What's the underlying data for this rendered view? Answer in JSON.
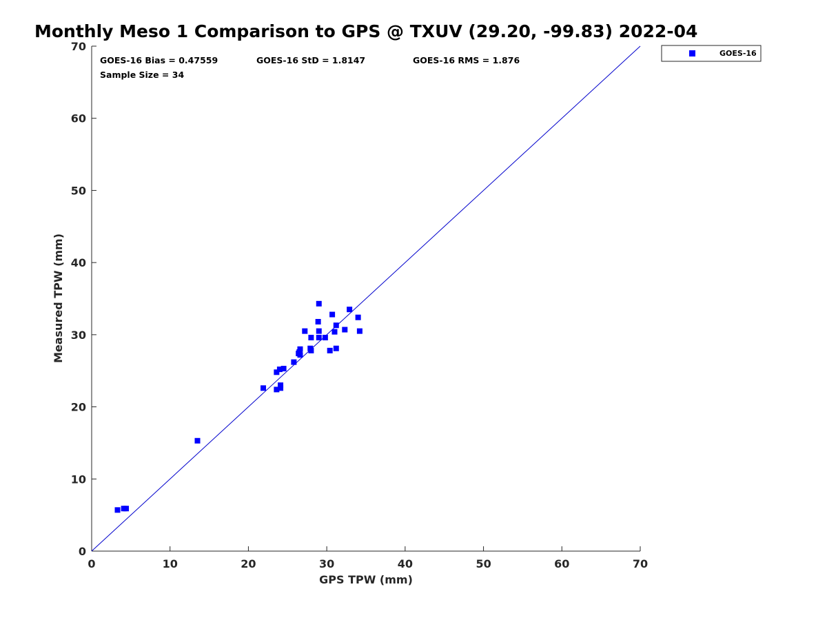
{
  "chart_data": {
    "type": "scatter",
    "title": "Monthly Meso 1 Comparison to GPS @ TXUV (29.20, -99.83) 2022-04",
    "xlabel": "GPS TPW (mm)",
    "ylabel": "Measured TPW (mm)",
    "xlim": [
      0,
      70
    ],
    "ylim": [
      0,
      70
    ],
    "xticks": [
      0,
      10,
      20,
      30,
      40,
      50,
      60,
      70
    ],
    "yticks": [
      0,
      10,
      20,
      30,
      40,
      50,
      60,
      70
    ],
    "grid": false,
    "legend_position": "outside-top-right",
    "reference_line": "y = x",
    "colors": {
      "series": "#0000ff",
      "reference_line": "#0000cc",
      "axis": "#262626"
    },
    "stats": {
      "bias": "GOES-16 Bias = 0.47559",
      "std": "GOES-16 StD = 1.8147",
      "rms": "GOES-16 RMS = 1.876",
      "sample_size": "Sample Size = 34"
    },
    "series": [
      {
        "name": "GOES-16",
        "marker": "square",
        "points": [
          [
            3.3,
            5.7
          ],
          [
            4.1,
            5.9
          ],
          [
            4.4,
            5.9
          ],
          [
            13.5,
            15.3
          ],
          [
            21.9,
            22.6
          ],
          [
            23.6,
            22.4
          ],
          [
            24.1,
            22.6
          ],
          [
            24.1,
            23.0
          ],
          [
            23.6,
            24.8
          ],
          [
            24.0,
            25.2
          ],
          [
            24.5,
            25.3
          ],
          [
            25.8,
            26.2
          ],
          [
            26.4,
            27.4
          ],
          [
            26.6,
            27.2
          ],
          [
            26.6,
            28.0
          ],
          [
            27.2,
            30.5
          ],
          [
            27.9,
            28.1
          ],
          [
            28.0,
            27.8
          ],
          [
            28.0,
            29.6
          ],
          [
            28.9,
            31.8
          ],
          [
            29.0,
            30.5
          ],
          [
            29.0,
            29.6
          ],
          [
            29.0,
            34.3
          ],
          [
            29.8,
            29.6
          ],
          [
            30.4,
            27.8
          ],
          [
            30.7,
            32.8
          ],
          [
            31.0,
            30.4
          ],
          [
            31.2,
            31.3
          ],
          [
            31.2,
            28.1
          ],
          [
            32.3,
            30.7
          ],
          [
            32.9,
            33.5
          ],
          [
            34.0,
            32.4
          ],
          [
            34.2,
            30.5
          ],
          [
            26.5,
            27.6
          ]
        ]
      }
    ]
  }
}
